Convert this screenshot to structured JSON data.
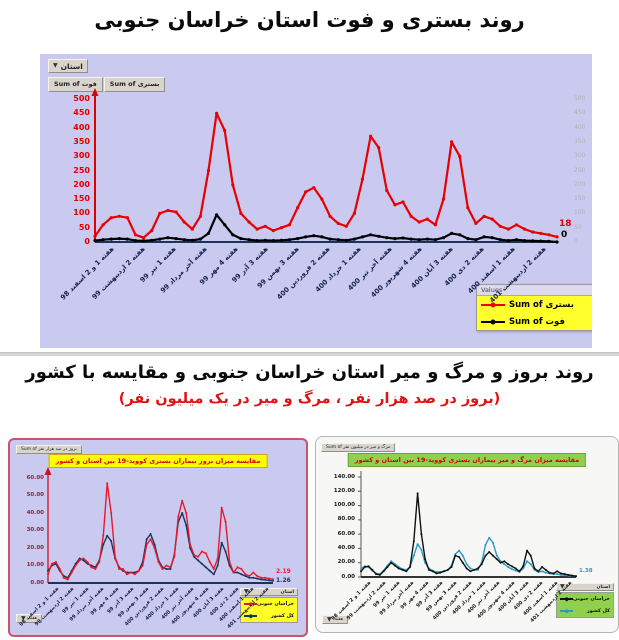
{
  "titles": {
    "top": "روند بستری و فوت استان خراسان جنوبی",
    "middle": "روند بروز و مرگ و میر استان خراسان جنوبی و مقایسه با کشور",
    "middle_sub": "(بروز در صد هزار نفر ، مرگ و میر در یک میلیون نفر)"
  },
  "week_labels": [
    "هفته 1 و 2 اسفند 98",
    "هفته 2 اردیبهشت 99",
    "هفته 1 تیر 99",
    "هفته آخر مرداد 99",
    "هفته 4 مهر 99",
    "هفته 3 آذر 99",
    "هفته 3 بهمن 99",
    "هفته 2 فروردین 400",
    "هفته 1 خرداد 400",
    "هفته آخر تیر 400",
    "هفته 4 شهریور 400",
    "هفته 3 آبان 400",
    "هفته 2 دی 400",
    "هفته 1 اسفند 400",
    "هفته 2 اردیبهشت 401"
  ],
  "main_chart": {
    "filter_button": "استان",
    "filter_icon": "▼",
    "field_buttons": [
      "Sum of فوت",
      "Sum of بستری"
    ],
    "legend": {
      "header": "Values",
      "items": [
        {
          "label": "Sum of بستری",
          "color": "#f00000"
        },
        {
          "label": "Sum of فوت",
          "color": "#000000"
        }
      ]
    },
    "end_labels": [
      {
        "text": "18",
        "color": "#e00000"
      },
      {
        "text": "0",
        "color": "#000000"
      }
    ]
  },
  "left_chart": {
    "field_button": "Sum of بروز در صد هزار نفر",
    "week_button": "هفته",
    "filter_button": "استان",
    "filter_icon": "▼",
    "title": "مقایسه میزان بروز بیماران بستری کووید-19 بین استان و کشور",
    "legend": [
      {
        "label": "خراسان جنوبی",
        "color": "#e8192c"
      },
      {
        "label": "کل کشور",
        "color": "#16365c"
      }
    ],
    "end_labels": [
      {
        "text": "2.19",
        "color": "#e8192c"
      },
      {
        "text": "1.26",
        "color": "#16365c"
      }
    ]
  },
  "right_chart": {
    "field_button": "Sum of مرگ و میر در میلیون نفر",
    "week_button": "هفته",
    "filter_button": "استان",
    "filter_icon": "▼",
    "title": "مقایسه میزان مرگ و میر بیماران بستری کووید-19 بین استان و کشور",
    "legend": [
      {
        "label": "خراسان جنوبی",
        "color": "#111111"
      },
      {
        "label": "کل کشور",
        "color": "#2e9ac4"
      }
    ],
    "end_labels": [
      {
        "text": "1.38",
        "color": "#2e9ac4"
      }
    ]
  },
  "chart_data": [
    {
      "id": "hospitalization_death_trend",
      "type": "line",
      "title": "روند بستری و فوت استان خراسان جنوبی",
      "xlabel": "هفته",
      "x_categories_ref": "week_labels",
      "ylim": [
        0,
        500
      ],
      "yticks": [
        0,
        50,
        100,
        150,
        200,
        250,
        300,
        350,
        400,
        450,
        500
      ],
      "grid": false,
      "legend_position": "bottom-right",
      "series": [
        {
          "name": "Sum of بستری",
          "color": "#e80000",
          "values": [
            20,
            60,
            85,
            90,
            85,
            25,
            15,
            40,
            100,
            110,
            105,
            70,
            45,
            90,
            250,
            450,
            390,
            200,
            100,
            70,
            45,
            55,
            40,
            50,
            60,
            120,
            175,
            190,
            150,
            90,
            65,
            55,
            100,
            220,
            370,
            330,
            180,
            130,
            140,
            90,
            70,
            80,
            60,
            150,
            350,
            300,
            120,
            65,
            90,
            80,
            55,
            45,
            60,
            45,
            35,
            30,
            25,
            18
          ]
        },
        {
          "name": "Sum of فوت",
          "color": "#000000",
          "values": [
            5,
            8,
            10,
            12,
            10,
            5,
            4,
            6,
            10,
            15,
            12,
            8,
            6,
            10,
            30,
            95,
            60,
            25,
            12,
            8,
            5,
            6,
            5,
            6,
            8,
            12,
            18,
            22,
            18,
            10,
            8,
            6,
            10,
            18,
            25,
            20,
            15,
            12,
            14,
            10,
            8,
            10,
            8,
            15,
            30,
            25,
            12,
            8,
            18,
            15,
            8,
            5,
            8,
            5,
            4,
            3,
            2,
            0
          ]
        }
      ]
    },
    {
      "id": "incidence_comparison",
      "type": "line",
      "title": "مقایسه میزان بروز بیماران بستری کووید-19 بین استان و کشور",
      "xlabel": "هفته",
      "x_categories_ref": "week_labels",
      "ylim": [
        0,
        60
      ],
      "yticks": [
        0,
        10,
        20,
        30,
        40,
        50,
        60
      ],
      "ytick_decimals": 2,
      "grid": false,
      "legend_position": "bottom-right",
      "series": [
        {
          "name": "خراسان جنوبی",
          "color": "#e8192c",
          "values": [
            5,
            11,
            12,
            8,
            3,
            2,
            6,
            10,
            13,
            14,
            12,
            9,
            8,
            12,
            27,
            57,
            40,
            15,
            8,
            8,
            5,
            6,
            5,
            7,
            10,
            22,
            25,
            20,
            12,
            8,
            10,
            9,
            15,
            38,
            47,
            40,
            22,
            16,
            15,
            18,
            17,
            12,
            8,
            14,
            43,
            35,
            12,
            6,
            9,
            8,
            5,
            4,
            6,
            4,
            3,
            3,
            2.5,
            2.19
          ]
        },
        {
          "name": "کل کشور",
          "color": "#16365c",
          "values": [
            7,
            10,
            11,
            7,
            4,
            3,
            7,
            11,
            14,
            13,
            11,
            10,
            9,
            13,
            22,
            27,
            24,
            14,
            9,
            7,
            6,
            6,
            6,
            7,
            12,
            25,
            28,
            22,
            13,
            9,
            8,
            8,
            16,
            35,
            40,
            33,
            20,
            15,
            13,
            11,
            9,
            7,
            5,
            10,
            23,
            18,
            10,
            6,
            6,
            5,
            4,
            3,
            3,
            2.5,
            2,
            1.8,
            1.5,
            1.26
          ]
        }
      ]
    },
    {
      "id": "mortality_comparison",
      "type": "line",
      "title": "مقایسه میزان مرگ و میر بیماران بستری کووید-19 بین استان و کشور",
      "xlabel": "هفته",
      "x_categories_ref": "week_labels",
      "ylim": [
        0,
        140
      ],
      "yticks": [
        0,
        20,
        40,
        60,
        80,
        100,
        120,
        140
      ],
      "ytick_decimals": 2,
      "grid": false,
      "legend_position": "bottom-right",
      "series": [
        {
          "name": "خراسان جنوبی",
          "color": "#111111",
          "values": [
            8,
            14,
            15,
            10,
            4,
            3,
            8,
            14,
            20,
            16,
            12,
            10,
            8,
            14,
            50,
            117,
            60,
            25,
            10,
            8,
            5,
            6,
            8,
            10,
            14,
            30,
            28,
            20,
            12,
            8,
            10,
            12,
            18,
            30,
            35,
            30,
            25,
            20,
            22,
            18,
            15,
            12,
            8,
            15,
            37,
            30,
            12,
            8,
            14,
            10,
            6,
            5,
            8,
            5,
            4,
            3,
            2,
            1
          ]
        },
        {
          "name": "کل کشور",
          "color": "#2e9ac4",
          "values": [
            12,
            15,
            14,
            9,
            5,
            4,
            9,
            16,
            22,
            18,
            14,
            11,
            10,
            14,
            30,
            46,
            38,
            20,
            12,
            9,
            7,
            7,
            8,
            10,
            16,
            32,
            37,
            30,
            18,
            12,
            10,
            10,
            20,
            45,
            55,
            48,
            30,
            22,
            18,
            14,
            11,
            9,
            7,
            12,
            22,
            18,
            10,
            7,
            8,
            6,
            5,
            4,
            4,
            3,
            2.5,
            2,
            1.7,
            1.38
          ]
        }
      ]
    }
  ]
}
